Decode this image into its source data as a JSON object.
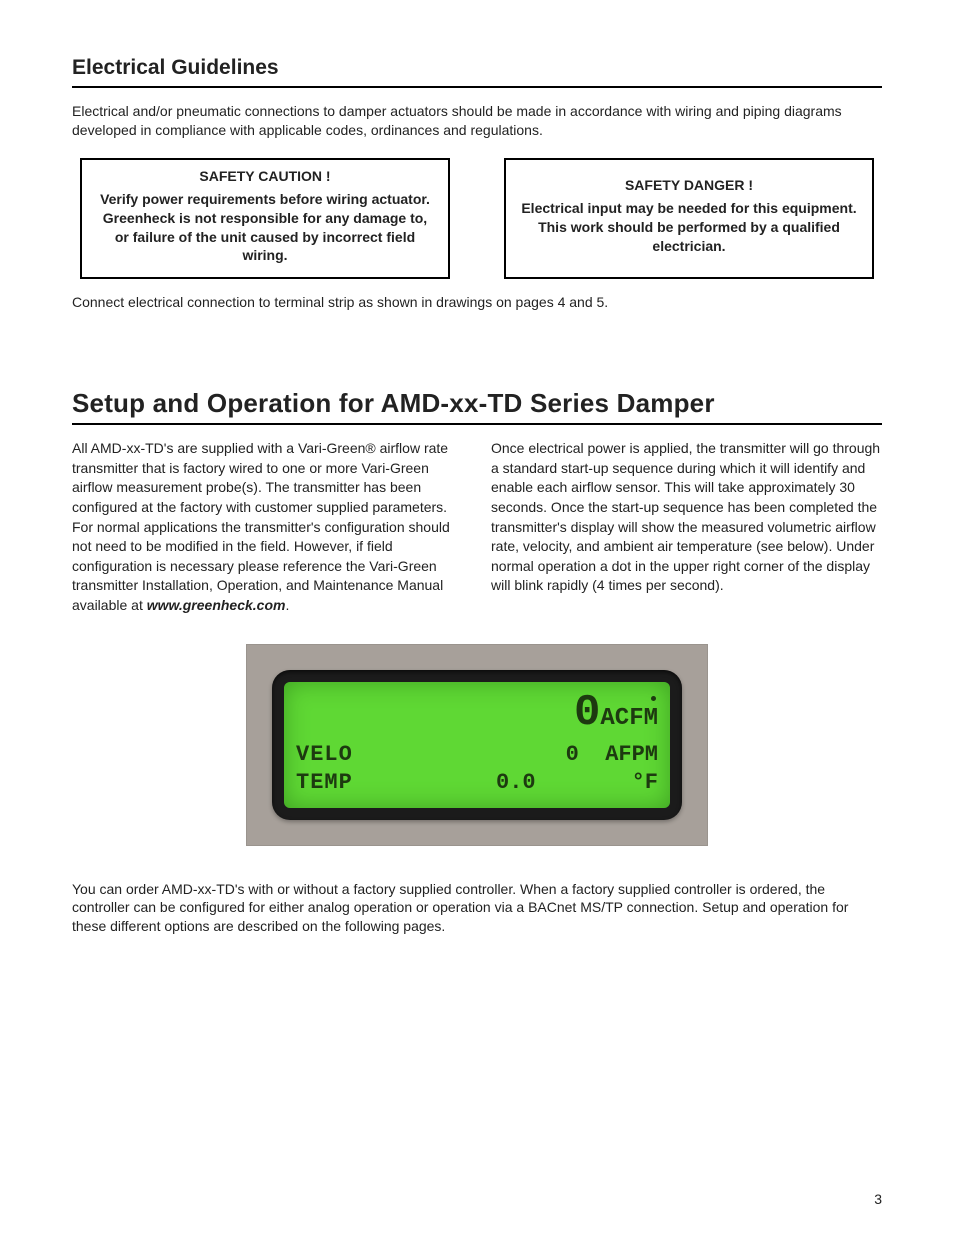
{
  "section1": {
    "title": "Electrical Guidelines",
    "intro": "Electrical and/or pneumatic connections to damper actuators should be made in accordance with wiring and piping diagrams developed in compliance with applicable codes, ordinances and regulations.",
    "safety_caution": {
      "heading": "SAFETY CAUTION !",
      "body": "Verify power requirements before wiring actuator. Greenheck is not responsible for any damage to, or failure of the unit caused by incorrect field wiring."
    },
    "safety_danger": {
      "heading": "SAFETY DANGER !",
      "body": "Electrical input may be needed for this equipment. This work should be performed by a qualified electrician."
    },
    "connect_note": "Connect electrical connection to terminal strip as shown in drawings on pages 4 and 5."
  },
  "section2": {
    "title": "Setup and Operation for AMD-xx-TD Series Damper",
    "left_col_pre": "All AMD-xx-TD's are supplied with a Vari-Green® airflow rate transmitter that is factory wired to one or more Vari-Green airflow measurement probe(s). The transmitter has been configured at the factory with customer supplied parameters. For normal applications the transmitter's configuration should not need to be modified in the field. However, if field configuration is necessary please reference the Vari-Green transmitter Installation, Operation, and Maintenance Manual available at ",
    "left_col_link": "www.greenheck.com",
    "left_col_post": ".",
    "right_col": "Once electrical power is applied, the transmitter will go through a standard start-up sequence during which it will identify and enable each airflow sensor. This will take approximately 30 seconds. Once the start-up sequence has been completed the transmitter's display will show the measured volumetric airflow rate, velocity, and ambient air temperature (see below). Under normal operation a dot in the upper right corner of the display will blink rapidly (4 times per second).",
    "footer_para": "You can order AMD-xx-TD's with or without a factory supplied controller. When a factory supplied controller is ordered, the controller can be configured for either analog operation or operation via a BACnet MS/TP connection. Setup and operation for these different options are described on the following pages."
  },
  "lcd": {
    "screen_bg": "#5fd834",
    "text_color": "#1d3a10",
    "bezel_color": "#1b1b1b",
    "panel_bg": "#a7a09a",
    "line1": {
      "big_value": "0",
      "unit": "ACFM"
    },
    "line2": {
      "label": "VELO",
      "value": "0",
      "unit": "AFPM"
    },
    "line3": {
      "label": "TEMP",
      "value": "0.0",
      "unit": "°F"
    }
  },
  "page_number": "3"
}
